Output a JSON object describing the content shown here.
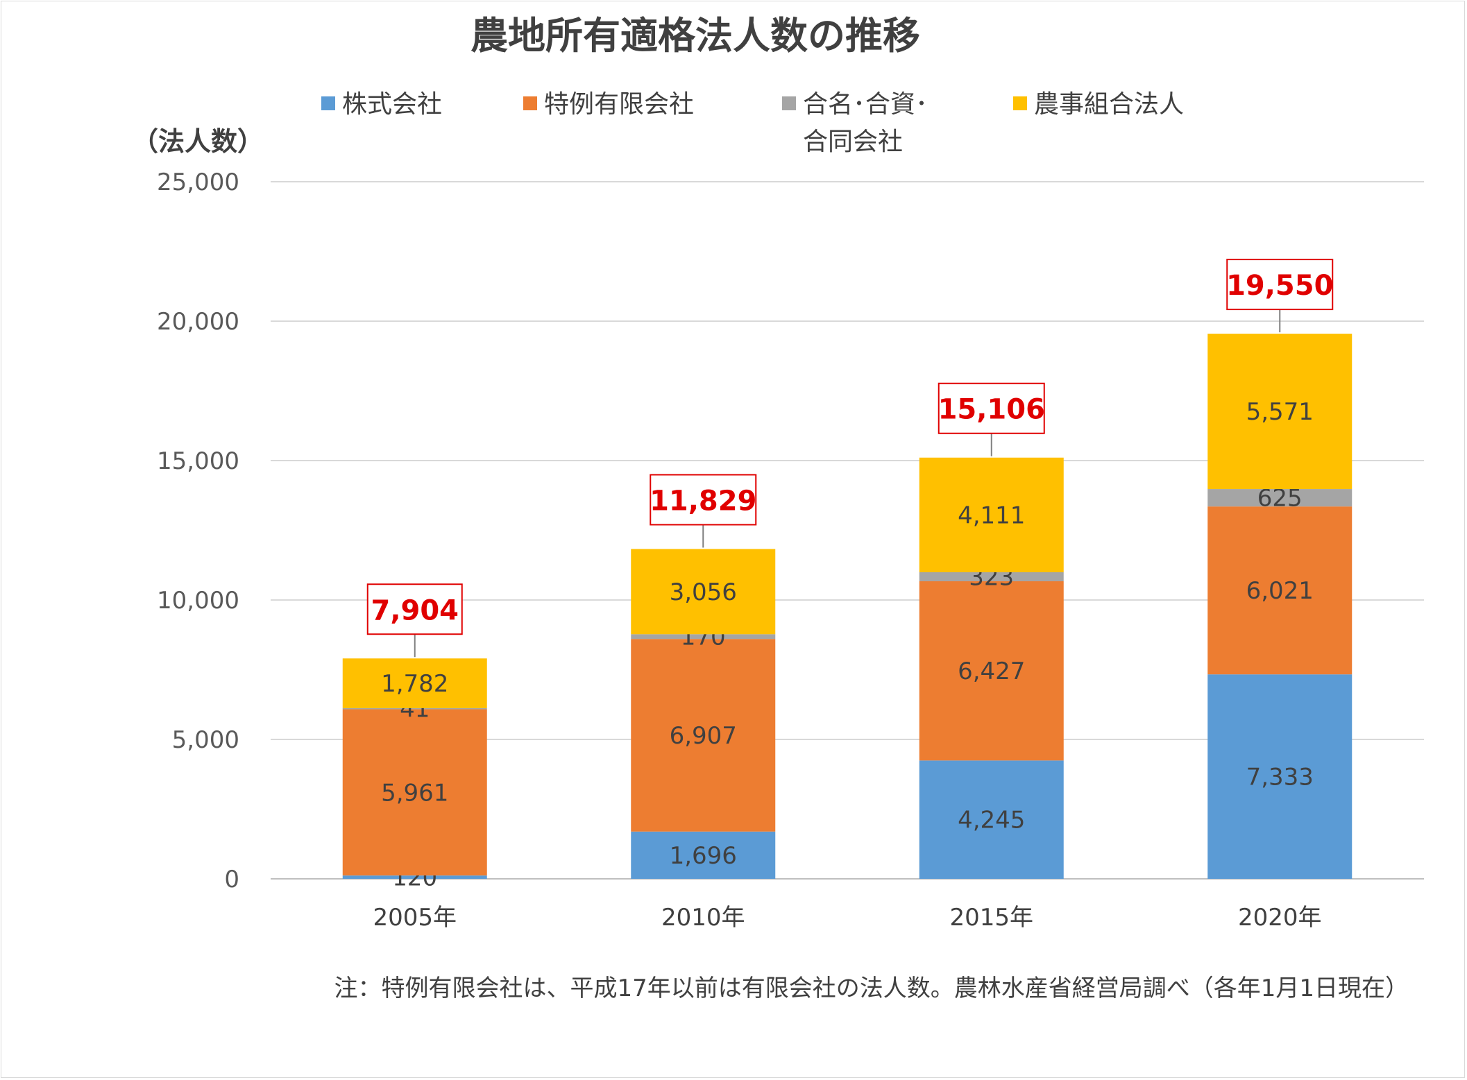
{
  "chart_data": {
    "type": "bar",
    "stacked": true,
    "title": "農地所有適格法人数の推移",
    "ylabel": "（法人数）",
    "xlabel": "",
    "ylim": [
      0,
      25000
    ],
    "y_ticks": [
      0,
      5000,
      10000,
      15000,
      20000,
      25000
    ],
    "y_tick_labels": [
      "0",
      "5,000",
      "10,000",
      "15,000",
      "20,000",
      "25,000"
    ],
    "categories": [
      "2005年",
      "2010年",
      "2015年",
      "2020年"
    ],
    "series": [
      {
        "name": "株式会社",
        "color": "#5B9BD5",
        "values": [
          120,
          1696,
          4245,
          7333
        ],
        "labels": [
          "120",
          "1,696",
          "4,245",
          "7,333"
        ]
      },
      {
        "name": "特例有限会社",
        "color": "#ED7D31",
        "values": [
          5961,
          6907,
          6427,
          6021
        ],
        "labels": [
          "5,961",
          "6,907",
          "6,427",
          "6,021"
        ]
      },
      {
        "name": "合名・合資・合同会社",
        "legend_lines": [
          "合名･合資･",
          "合同会社"
        ],
        "color": "#A5A5A5",
        "values": [
          41,
          170,
          323,
          625
        ],
        "labels": [
          "41",
          "170",
          "323",
          "625"
        ]
      },
      {
        "name": "農事組合法人",
        "color": "#FFC000",
        "values": [
          1782,
          3056,
          4111,
          5571
        ],
        "labels": [
          "1,782",
          "3,056",
          "4,111",
          "5,571"
        ]
      }
    ],
    "totals": [
      7904,
      11829,
      15106,
      19550
    ],
    "total_labels": [
      "7,904",
      "11,829",
      "15,106",
      "19,550"
    ],
    "total_label_color": "#E00000",
    "legend_position": "top",
    "grid": true,
    "note": "注：特例有限会社は、平成17年以前は有限会社の法人数。農林水産省経営局調べ（各年1月1日現在）"
  }
}
